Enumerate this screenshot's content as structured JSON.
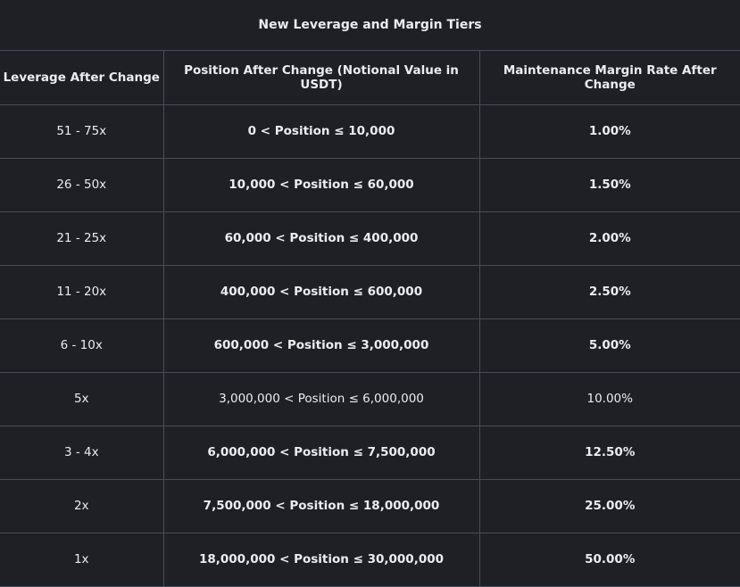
{
  "title": "New Leverage and Margin Tiers",
  "headers": [
    "Leverage After Change",
    "Position After Change (Notional Value in USDT)",
    "Maintenance Margin Rate After Change"
  ],
  "rows": [
    {
      "leverage": "51 - 75x",
      "position": "0 < Position ≤ 10,000",
      "mmr": "1.00%"
    },
    {
      "leverage": "26 - 50x",
      "position": "10,000 < Position ≤ 60,000",
      "mmr": "1.50%"
    },
    {
      "leverage": "21 - 25x",
      "position": "60,000 < Position ≤ 400,000",
      "mmr": "2.00%"
    },
    {
      "leverage": "11 - 20x",
      "position": "400,000 < Position ≤ 600,000",
      "mmr": "2.50%"
    },
    {
      "leverage": "6 - 10x",
      "position": "600,000 < Position ≤ 3,000,000",
      "mmr": "5.00%"
    },
    {
      "leverage": "5x",
      "position": "3,000,000 < Position ≤ 6,000,000",
      "mmr": "10.00%"
    },
    {
      "leverage": "3 - 4x",
      "position": "6,000,000 < Position ≤ 7,500,000",
      "mmr": "12.50%"
    },
    {
      "leverage": "2x",
      "position": "7,500,000 < Position ≤ 18,000,000",
      "mmr": "25.00%"
    },
    {
      "leverage": "1x",
      "position": "18,000,000 < Position ≤ 30,000,000",
      "mmr": "50.00%"
    }
  ]
}
